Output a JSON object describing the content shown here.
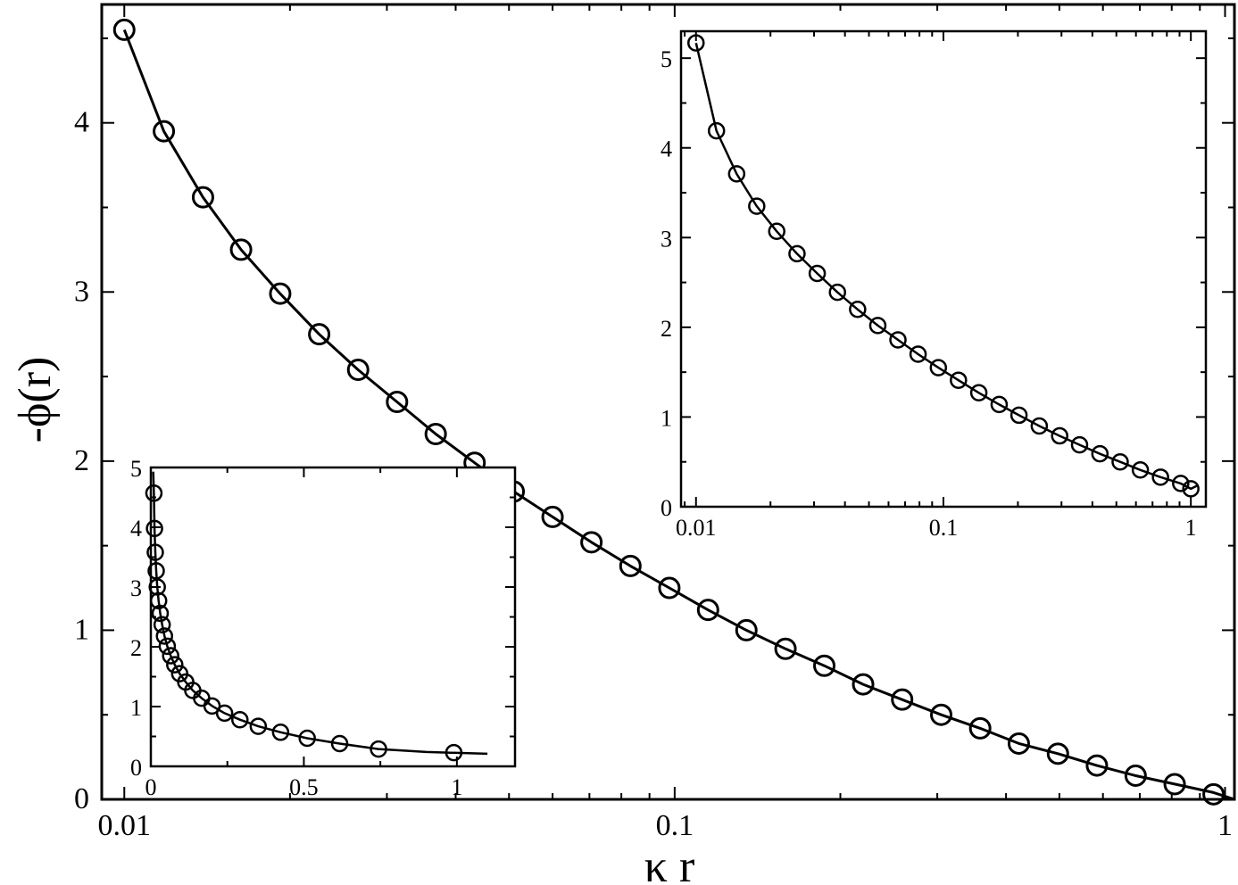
{
  "chart_data": [
    {
      "id": "main",
      "type": "scatter",
      "title": "",
      "xlabel": "κ r",
      "ylabel": "-ϕ(r)",
      "xscale": "log",
      "xlim": [
        0.0091,
        1.04
      ],
      "ylim": [
        0,
        4.7
      ],
      "xticks": [
        0.01,
        0.1,
        1
      ],
      "xtick_labels": [
        "0.01",
        "0.1",
        "1"
      ],
      "yticks": [
        0,
        1,
        2,
        3,
        4
      ],
      "ytick_labels": [
        "0",
        "1",
        "2",
        "3",
        "4"
      ],
      "grid": false,
      "legend": "none",
      "series": [
        {
          "marker": "open-circle",
          "x": [
            0.01,
            0.0118,
            0.0139,
            0.0163,
            0.0192,
            0.0226,
            0.0266,
            0.0313,
            0.0368,
            0.0433,
            0.051,
            0.06,
            0.0706,
            0.0831,
            0.0978,
            0.115,
            0.135,
            0.159,
            0.187,
            0.22,
            0.259,
            0.305,
            0.359,
            0.422,
            0.497,
            0.585,
            0.688,
            0.81,
            0.953
          ],
          "y": [
            4.55,
            3.95,
            3.56,
            3.25,
            2.99,
            2.75,
            2.54,
            2.35,
            2.16,
            1.99,
            1.82,
            1.67,
            1.52,
            1.38,
            1.25,
            1.12,
            1.0,
            0.89,
            0.79,
            0.68,
            0.59,
            0.5,
            0.42,
            0.33,
            0.27,
            0.2,
            0.14,
            0.09,
            0.03
          ]
        }
      ],
      "curve": {
        "x": [
          0.01,
          0.0118,
          0.0139,
          0.0163,
          0.0192,
          0.0226,
          0.0266,
          0.0313,
          0.0368,
          0.0433,
          0.051,
          0.06,
          0.0706,
          0.0831,
          0.0978,
          0.115,
          0.135,
          0.159,
          0.187,
          0.22,
          0.259,
          0.305,
          0.359,
          0.422,
          0.497,
          0.585,
          0.688,
          0.81,
          0.953,
          1.04
        ],
        "y": [
          4.55,
          3.95,
          3.56,
          3.25,
          2.99,
          2.75,
          2.54,
          2.35,
          2.16,
          1.99,
          1.82,
          1.67,
          1.52,
          1.38,
          1.25,
          1.12,
          1.0,
          0.89,
          0.79,
          0.68,
          0.59,
          0.5,
          0.42,
          0.33,
          0.27,
          0.2,
          0.14,
          0.09,
          0.04,
          0.0
        ]
      }
    },
    {
      "id": "inset-right",
      "type": "scatter",
      "title": "",
      "xlabel": "",
      "ylabel": "",
      "xscale": "log",
      "xlim": [
        0.0087,
        1.15
      ],
      "ylim": [
        0,
        5.3
      ],
      "xticks": [
        0.01,
        0.1,
        1
      ],
      "xtick_labels": [
        "0.01",
        "0.1",
        "1"
      ],
      "yticks": [
        0,
        1,
        2,
        3,
        4,
        5
      ],
      "ytick_labels": [
        "0",
        "1",
        "2",
        "3",
        "4",
        "5"
      ],
      "grid": false,
      "legend": "none",
      "series": [
        {
          "marker": "open-circle",
          "x": [
            0.01,
            0.0121,
            0.0146,
            0.0176,
            0.0212,
            0.0256,
            0.0309,
            0.0373,
            0.045,
            0.0543,
            0.0655,
            0.079,
            0.0954,
            0.115,
            0.139,
            0.168,
            0.202,
            0.244,
            0.295,
            0.355,
            0.429,
            0.518,
            0.625,
            0.754,
            0.91,
            1.0
          ],
          "y": [
            5.17,
            4.19,
            3.71,
            3.35,
            3.07,
            2.82,
            2.6,
            2.39,
            2.2,
            2.02,
            1.86,
            1.7,
            1.55,
            1.41,
            1.27,
            1.14,
            1.02,
            0.9,
            0.79,
            0.69,
            0.59,
            0.5,
            0.41,
            0.33,
            0.26,
            0.2
          ]
        }
      ],
      "curve": {
        "x": [
          0.01,
          0.0121,
          0.0146,
          0.0176,
          0.0212,
          0.0256,
          0.0309,
          0.0373,
          0.045,
          0.0543,
          0.0655,
          0.079,
          0.0954,
          0.115,
          0.139,
          0.168,
          0.202,
          0.244,
          0.295,
          0.355,
          0.429,
          0.518,
          0.625,
          0.754,
          0.91,
          1.0,
          1.07
        ],
        "y": [
          5.17,
          4.19,
          3.71,
          3.35,
          3.07,
          2.82,
          2.6,
          2.39,
          2.2,
          2.02,
          1.86,
          1.7,
          1.55,
          1.41,
          1.27,
          1.14,
          1.02,
          0.9,
          0.79,
          0.69,
          0.59,
          0.5,
          0.41,
          0.33,
          0.26,
          0.2,
          0.24
        ]
      }
    },
    {
      "id": "inset-left",
      "type": "scatter",
      "title": "",
      "xlabel": "",
      "ylabel": "",
      "xscale": "linear",
      "xlim": [
        0,
        1.19
      ],
      "ylim": [
        0,
        5
      ],
      "xticks": [
        0,
        0.5,
        1
      ],
      "xtick_labels": [
        "0",
        "0.5",
        "1"
      ],
      "yticks": [
        0,
        1,
        2,
        3,
        4,
        5
      ],
      "ytick_labels": [
        "0",
        "1",
        "2",
        "3",
        "4",
        "5"
      ],
      "grid": false,
      "legend": "none",
      "series": [
        {
          "marker": "open-circle",
          "x": [
            0.01,
            0.012,
            0.0145,
            0.0175,
            0.021,
            0.0254,
            0.0306,
            0.0369,
            0.0445,
            0.0537,
            0.0648,
            0.0782,
            0.0943,
            0.114,
            0.137,
            0.166,
            0.2,
            0.241,
            0.291,
            0.351,
            0.424,
            0.511,
            0.617,
            0.744,
            0.99
          ],
          "y": [
            4.57,
            3.98,
            3.58,
            3.27,
            3.0,
            2.77,
            2.56,
            2.37,
            2.18,
            2.01,
            1.85,
            1.7,
            1.55,
            1.41,
            1.27,
            1.14,
            1.01,
            0.89,
            0.78,
            0.67,
            0.57,
            0.47,
            0.38,
            0.29,
            0.23
          ]
        }
      ],
      "curve": {
        "x": [
          0.008,
          0.01,
          0.012,
          0.0145,
          0.0175,
          0.021,
          0.0254,
          0.0306,
          0.0369,
          0.0445,
          0.0537,
          0.0648,
          0.0782,
          0.0943,
          0.114,
          0.137,
          0.166,
          0.2,
          0.241,
          0.291,
          0.351,
          0.424,
          0.511,
          0.617,
          0.744,
          0.9,
          1.1
        ],
        "y": [
          4.93,
          4.57,
          3.98,
          3.58,
          3.27,
          3.0,
          2.77,
          2.56,
          2.37,
          2.18,
          2.01,
          1.85,
          1.7,
          1.55,
          1.41,
          1.27,
          1.14,
          1.01,
          0.89,
          0.78,
          0.67,
          0.57,
          0.47,
          0.38,
          0.29,
          0.24,
          0.21
        ]
      }
    }
  ]
}
